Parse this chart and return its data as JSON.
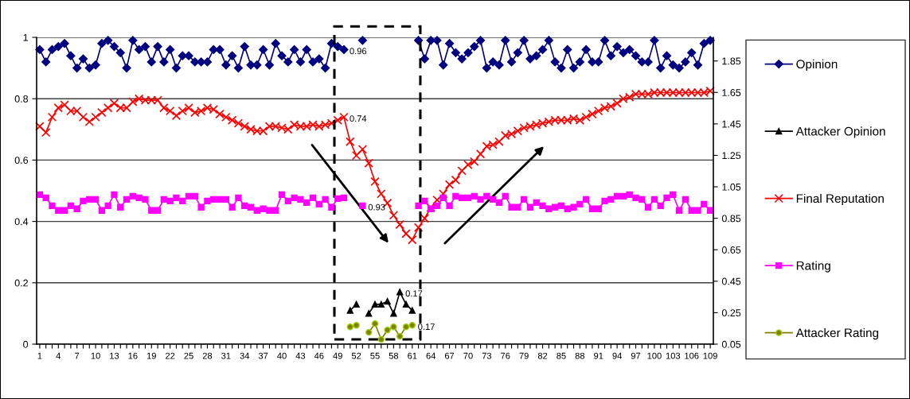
{
  "chart_data": {
    "type": "line",
    "categories": [
      "1",
      null,
      null,
      "4",
      null,
      null,
      "7",
      null,
      null,
      "10",
      null,
      null,
      "13",
      null,
      null,
      "16",
      null,
      null,
      "19",
      null,
      null,
      "22",
      null,
      null,
      "25",
      null,
      null,
      "28",
      null,
      null,
      "31",
      null,
      null,
      "34",
      null,
      null,
      "37",
      null,
      null,
      "40",
      null,
      null,
      "43",
      null,
      null,
      "46",
      null,
      null,
      "49",
      null,
      null,
      "52",
      null,
      null,
      "55",
      null,
      null,
      "58",
      null,
      null,
      "61",
      null,
      null,
      "64",
      null,
      null,
      "67",
      null,
      null,
      "70",
      null,
      null,
      "73",
      null,
      null,
      "76",
      null,
      null,
      "79",
      null,
      null,
      "82",
      null,
      null,
      "85",
      null,
      null,
      "88",
      null,
      null,
      "91",
      null,
      null,
      "94",
      null,
      null,
      "97",
      null,
      null,
      "100",
      null,
      null,
      "103",
      null,
      null,
      "106",
      null,
      null,
      "109"
    ],
    "series": [
      {
        "name": "Opinion",
        "color": "#000080",
        "marker": "diamond",
        "axis": "y",
        "values": [
          0.96,
          0.92,
          0.96,
          0.97,
          0.98,
          0.94,
          0.9,
          0.93,
          0.9,
          0.91,
          0.98,
          0.99,
          0.97,
          0.95,
          0.9,
          0.99,
          0.96,
          0.97,
          0.92,
          0.97,
          0.92,
          0.96,
          0.9,
          0.94,
          0.94,
          0.92,
          0.92,
          0.92,
          0.96,
          0.96,
          0.91,
          0.94,
          0.9,
          0.97,
          0.91,
          0.91,
          0.96,
          0.91,
          0.98,
          0.94,
          0.92,
          0.96,
          0.92,
          0.96,
          0.92,
          0.93,
          0.9,
          0.98,
          0.97,
          0.96,
          null,
          null,
          0.99,
          null,
          null,
          null,
          null,
          null,
          null,
          null,
          null,
          0.99,
          0.93,
          0.99,
          0.99,
          0.91,
          0.98,
          0.95,
          0.93,
          0.95,
          0.97,
          0.99,
          0.9,
          0.92,
          0.91,
          0.99,
          0.92,
          0.95,
          0.99,
          0.93,
          0.94,
          0.96,
          0.99,
          0.92,
          0.9,
          0.96,
          0.9,
          0.92,
          0.96,
          0.92,
          0.92,
          0.99,
          0.94,
          0.97,
          0.95,
          0.96,
          0.94,
          0.92,
          0.92,
          0.99,
          0.9,
          0.94,
          0.91,
          0.9,
          0.92,
          0.95,
          0.91,
          0.98,
          0.99
        ],
        "value_labels": [
          null,
          null,
          null,
          null,
          null,
          null,
          null,
          null,
          null,
          null,
          null,
          null,
          null,
          null,
          null,
          null,
          null,
          null,
          null,
          null,
          null,
          null,
          null,
          null,
          null,
          null,
          null,
          null,
          null,
          null,
          null,
          null,
          null,
          null,
          null,
          null,
          null,
          null,
          null,
          null,
          null,
          null,
          null,
          null,
          null,
          null,
          null,
          null,
          null,
          "0.96",
          null,
          null,
          null,
          null,
          null,
          null,
          null,
          null,
          null,
          null,
          null,
          null,
          null,
          null,
          null,
          null,
          null,
          null,
          null,
          null,
          null,
          null,
          null,
          null,
          null,
          null,
          null,
          null,
          null,
          null,
          null,
          null,
          null,
          null,
          null,
          null,
          null,
          null,
          null,
          null,
          null,
          null,
          null,
          null,
          null,
          null,
          null,
          null,
          null,
          null,
          null,
          null,
          null,
          null,
          null,
          null,
          null,
          null,
          null
        ]
      },
      {
        "name": "Attacker Opinion",
        "color": "#000000",
        "marker": "triangle",
        "axis": "y",
        "values": [
          null,
          null,
          null,
          null,
          null,
          null,
          null,
          null,
          null,
          null,
          null,
          null,
          null,
          null,
          null,
          null,
          null,
          null,
          null,
          null,
          null,
          null,
          null,
          null,
          null,
          null,
          null,
          null,
          null,
          null,
          null,
          null,
          null,
          null,
          null,
          null,
          null,
          null,
          null,
          null,
          null,
          null,
          null,
          null,
          null,
          null,
          null,
          null,
          null,
          null,
          0.11,
          0.13,
          null,
          0.1,
          0.13,
          0.13,
          0.14,
          0.1,
          0.17,
          0.13,
          0.11,
          null,
          null,
          null,
          null,
          null,
          null,
          null,
          null,
          null,
          null,
          null,
          null,
          null,
          null,
          null,
          null,
          null,
          null,
          null,
          null,
          null,
          null,
          null,
          null,
          null,
          null,
          null,
          null,
          null,
          null,
          null,
          null,
          null,
          null,
          null,
          null,
          null,
          null,
          null,
          null,
          null,
          null,
          null,
          null,
          null,
          null,
          null,
          null
        ],
        "value_labels": [
          null,
          null,
          null,
          null,
          null,
          null,
          null,
          null,
          null,
          null,
          null,
          null,
          null,
          null,
          null,
          null,
          null,
          null,
          null,
          null,
          null,
          null,
          null,
          null,
          null,
          null,
          null,
          null,
          null,
          null,
          null,
          null,
          null,
          null,
          null,
          null,
          null,
          null,
          null,
          null,
          null,
          null,
          null,
          null,
          null,
          null,
          null,
          null,
          null,
          null,
          null,
          null,
          null,
          null,
          null,
          null,
          null,
          null,
          "0.17",
          null,
          null,
          null,
          null,
          null,
          null,
          null,
          null,
          null,
          null,
          null,
          null,
          null,
          null,
          null,
          null,
          null,
          null,
          null,
          null,
          null,
          null,
          null,
          null,
          null,
          null,
          null,
          null,
          null,
          null,
          null,
          null,
          null,
          null,
          null,
          null,
          null,
          null,
          null,
          null,
          null,
          null,
          null,
          null,
          null,
          null,
          null,
          null,
          null,
          null
        ]
      },
      {
        "name": "Final Reputation",
        "color": "#ff0000",
        "marker": "cross",
        "axis": "y",
        "values": [
          0.71,
          0.69,
          0.74,
          0.77,
          0.78,
          0.76,
          0.76,
          0.74,
          0.725,
          0.74,
          0.755,
          0.77,
          0.785,
          0.77,
          0.77,
          0.79,
          0.8,
          0.795,
          0.795,
          0.795,
          0.77,
          0.76,
          0.745,
          0.76,
          0.77,
          0.755,
          0.76,
          0.77,
          0.765,
          0.75,
          0.74,
          0.73,
          0.72,
          0.71,
          0.7,
          0.695,
          0.695,
          0.71,
          0.71,
          0.705,
          0.7,
          0.715,
          0.71,
          0.71,
          0.715,
          0.71,
          0.715,
          0.72,
          0.73,
          0.74,
          0.66,
          0.615,
          0.635,
          0.59,
          0.53,
          0.49,
          0.46,
          0.42,
          0.39,
          0.36,
          0.34,
          0.38,
          0.41,
          0.445,
          0.47,
          0.49,
          0.52,
          0.535,
          0.565,
          0.585,
          0.595,
          0.62,
          0.645,
          0.65,
          0.66,
          0.68,
          0.685,
          0.695,
          0.705,
          0.71,
          0.715,
          0.72,
          0.725,
          0.73,
          0.73,
          0.73,
          0.735,
          0.73,
          0.74,
          0.75,
          0.76,
          0.77,
          0.775,
          0.785,
          0.8,
          0.805,
          0.815,
          0.815,
          0.815,
          0.82,
          0.82,
          0.82,
          0.82,
          0.82,
          0.82,
          0.82,
          0.82,
          0.82,
          0.825
        ],
        "value_labels": [
          null,
          null,
          null,
          null,
          null,
          null,
          null,
          null,
          null,
          null,
          null,
          null,
          null,
          null,
          null,
          null,
          null,
          null,
          null,
          null,
          null,
          null,
          null,
          null,
          null,
          null,
          null,
          null,
          null,
          null,
          null,
          null,
          null,
          null,
          null,
          null,
          null,
          null,
          null,
          null,
          null,
          null,
          null,
          null,
          null,
          null,
          null,
          null,
          null,
          "0.74",
          null,
          null,
          null,
          null,
          null,
          null,
          null,
          null,
          null,
          null,
          null,
          null,
          null,
          null,
          null,
          null,
          null,
          null,
          null,
          null,
          null,
          null,
          null,
          null,
          null,
          null,
          null,
          null,
          null,
          null,
          null,
          null,
          null,
          null,
          null,
          null,
          null,
          null,
          null,
          null,
          null,
          null,
          null,
          null,
          null,
          null,
          null,
          null,
          null,
          null,
          null,
          null,
          null,
          null,
          null,
          null,
          null,
          null,
          null
        ]
      },
      {
        "name": "Rating",
        "color": "#ff00ff",
        "marker": "square",
        "axis": "y2",
        "values": [
          1.0,
          0.98,
          0.93,
          0.9,
          0.9,
          0.93,
          0.91,
          0.96,
          0.97,
          0.97,
          0.9,
          0.93,
          1.0,
          0.92,
          0.97,
          0.99,
          0.98,
          0.97,
          0.9,
          0.9,
          0.97,
          0.96,
          0.98,
          0.96,
          0.99,
          0.99,
          0.92,
          0.96,
          0.97,
          0.97,
          0.97,
          0.92,
          0.98,
          0.93,
          0.92,
          0.9,
          0.91,
          0.9,
          0.9,
          1.0,
          0.96,
          0.98,
          0.97,
          0.95,
          0.98,
          0.94,
          0.97,
          0.92,
          0.975,
          0.98,
          null,
          null,
          0.93,
          null,
          null,
          null,
          null,
          null,
          null,
          null,
          null,
          0.93,
          0.96,
          0.91,
          0.93,
          0.98,
          0.93,
          0.99,
          0.98,
          0.98,
          0.99,
          0.97,
          0.99,
          0.97,
          0.95,
          0.99,
          0.92,
          0.92,
          0.97,
          0.92,
          0.95,
          0.93,
          0.91,
          0.92,
          0.93,
          0.91,
          0.92,
          0.94,
          0.97,
          0.91,
          0.91,
          0.96,
          0.97,
          0.99,
          0.99,
          1.0,
          0.98,
          0.97,
          0.92,
          0.97,
          0.93,
          0.98,
          1.0,
          0.9,
          0.97,
          0.9,
          0.9,
          0.94,
          0.9
        ],
        "value_labels": [
          null,
          null,
          null,
          null,
          null,
          null,
          null,
          null,
          null,
          null,
          null,
          null,
          null,
          null,
          null,
          null,
          null,
          null,
          null,
          null,
          null,
          null,
          null,
          null,
          null,
          null,
          null,
          null,
          null,
          null,
          null,
          null,
          null,
          null,
          null,
          null,
          null,
          null,
          null,
          null,
          null,
          null,
          null,
          null,
          null,
          null,
          null,
          null,
          null,
          null,
          null,
          null,
          "0.93",
          null,
          null,
          null,
          null,
          null,
          null,
          null,
          null,
          null,
          null,
          null,
          null,
          null,
          null,
          null,
          null,
          null,
          null,
          null,
          null,
          null,
          null,
          null,
          null,
          null,
          null,
          null,
          null,
          null,
          null,
          null,
          null,
          null,
          null,
          null,
          null,
          null,
          null,
          null,
          null,
          null,
          null,
          null,
          null,
          null,
          null,
          null,
          null,
          null,
          null,
          null,
          null,
          null,
          null,
          null,
          null
        ]
      },
      {
        "name": "Attacker Rating",
        "color": "#808000",
        "marker": "circle",
        "axis": "y2",
        "values": [
          null,
          null,
          null,
          null,
          null,
          null,
          null,
          null,
          null,
          null,
          null,
          null,
          null,
          null,
          null,
          null,
          null,
          null,
          null,
          null,
          null,
          null,
          null,
          null,
          null,
          null,
          null,
          null,
          null,
          null,
          null,
          null,
          null,
          null,
          null,
          null,
          null,
          null,
          null,
          null,
          null,
          null,
          null,
          null,
          null,
          null,
          null,
          null,
          null,
          null,
          0.16,
          0.17,
          null,
          0.125,
          0.18,
          0.08,
          0.14,
          0.16,
          0.1,
          0.16,
          0.17,
          null,
          null,
          null,
          null,
          null,
          null,
          null,
          null,
          null,
          null,
          null,
          null,
          null,
          null,
          null,
          null,
          null,
          null,
          null,
          null,
          null,
          null,
          null,
          null,
          null,
          null,
          null,
          null,
          null,
          null,
          null,
          null,
          null,
          null,
          null,
          null,
          null,
          null,
          null,
          null,
          null,
          null,
          null,
          null,
          null,
          null,
          null,
          null
        ],
        "value_labels": [
          null,
          null,
          null,
          null,
          null,
          null,
          null,
          null,
          null,
          null,
          null,
          null,
          null,
          null,
          null,
          null,
          null,
          null,
          null,
          null,
          null,
          null,
          null,
          null,
          null,
          null,
          null,
          null,
          null,
          null,
          null,
          null,
          null,
          null,
          null,
          null,
          null,
          null,
          null,
          null,
          null,
          null,
          null,
          null,
          null,
          null,
          null,
          null,
          null,
          null,
          null,
          null,
          null,
          null,
          null,
          null,
          null,
          null,
          null,
          null,
          "0.17",
          null,
          null,
          null,
          null,
          null,
          null,
          null,
          null,
          null,
          null,
          null,
          null,
          null,
          null,
          null,
          null,
          null,
          null,
          null,
          null,
          null,
          null,
          null,
          null,
          null,
          null,
          null,
          null,
          null,
          null,
          null,
          null,
          null,
          null,
          null,
          null,
          null,
          null,
          null,
          null,
          null,
          null,
          null,
          null,
          null,
          null,
          null,
          null
        ]
      }
    ],
    "ylim": [
      0,
      1
    ],
    "yticks": [
      0,
      0.2,
      0.4,
      0.6,
      0.8,
      1
    ],
    "y2lim": [
      0.05,
      2.0
    ],
    "y2ticks": [
      0.05,
      0.25,
      0.45,
      0.65,
      0.85,
      1.05,
      1.25,
      1.45,
      1.65,
      1.85
    ],
    "grid": "y",
    "legend": "right",
    "line_style": "solid"
  }
}
